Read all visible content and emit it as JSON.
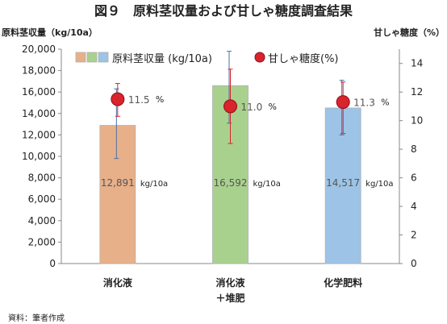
{
  "figure_title": "図９　原料茎収量および甘しゃ糖度調査結果",
  "source_note": "資料：筆者作成",
  "chart_data": {
    "type": "bar",
    "categories": [
      [
        "消化液"
      ],
      [
        "消化液",
        "＋堆肥"
      ],
      [
        "化学肥料"
      ]
    ],
    "ylabel_left": "原料茎収量（kg/10a）",
    "ylabel_right": "甘しゃ糖度（%）",
    "ylim_left": [
      0,
      20000
    ],
    "yticks_left": [
      "0",
      "2,000",
      "4,000",
      "6,000",
      "8,000",
      "10,000",
      "12,000",
      "14,000",
      "16,000",
      "18,000",
      "20,000"
    ],
    "ylim_right": [
      0,
      15
    ],
    "yticks_right": [
      "0",
      "2",
      "4",
      "6",
      "8",
      "10",
      "12",
      "14"
    ],
    "grid": false,
    "legend_position": "top",
    "series": [
      {
        "name": "原料茎収量 (kg/10a)",
        "axis": "left",
        "kind": "bar",
        "values": [
          12891,
          16592,
          14517
        ],
        "value_labels": [
          "12,891",
          "16,592",
          "14,517"
        ],
        "unit_label": "kg/10a",
        "errors": [
          [
            9800,
            16300
          ],
          [
            13100,
            19800
          ],
          [
            12000,
            17100
          ]
        ],
        "colors": [
          "#e8b089",
          "#a9d18e",
          "#9dc3e6"
        ]
      },
      {
        "name": "甘しゃ糖度(%)",
        "axis": "right",
        "kind": "point",
        "values": [
          11.5,
          11.0,
          11.3
        ],
        "value_labels": [
          "11.5",
          "11.0",
          "11.3"
        ],
        "unit_label": "%",
        "errors": [
          [
            10.3,
            12.6
          ],
          [
            8.4,
            13.6
          ],
          [
            9.1,
            12.7
          ]
        ],
        "color": "#d9232d"
      }
    ]
  }
}
